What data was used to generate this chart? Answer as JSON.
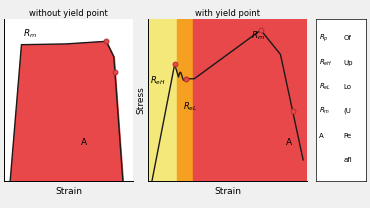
{
  "title_left": "without yield point",
  "title_right": "with yield point",
  "xlabel": "Strain",
  "ylabel": "Stress",
  "bg_color": "#f0f0f0",
  "red_fill": "#e8484a",
  "yellow_fill": "#f5e87a",
  "orange_fill": "#f5a020",
  "curve_color": "#1a1a1a",
  "point_fill": "#e8484a",
  "point_edge": "#b03030",
  "legend_labels": [
    "R_p",
    "R_{eH}",
    "R_{eL}",
    "R_m",
    "A"
  ],
  "legend_desc": [
    "Of",
    "Up",
    "Lo",
    "(U",
    "Pe",
    "afl"
  ]
}
